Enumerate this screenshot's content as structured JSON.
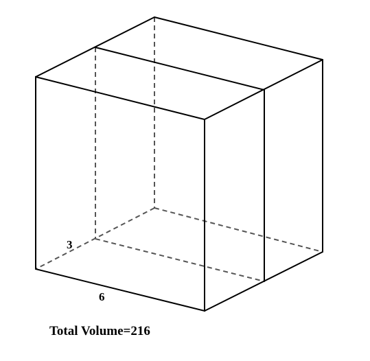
{
  "diagram": {
    "labels": {
      "depth": "3",
      "width": "6"
    },
    "caption": "Total Volume=216"
  }
}
